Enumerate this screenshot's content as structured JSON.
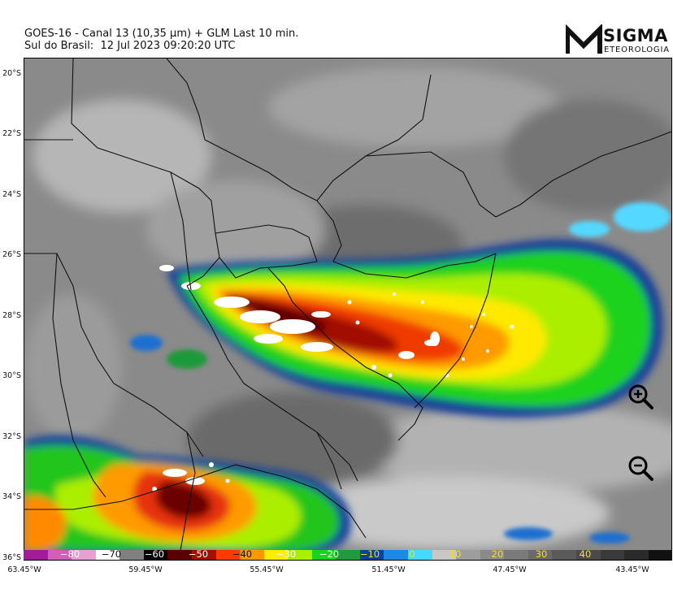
{
  "header": {
    "line1": "GOES-16 - Canal 13 (10,35 µm) + GLM Last 10 min.",
    "line2": "Sul do Brasil:  12 Jul 2023 09:20:20 UTC"
  },
  "logo": {
    "brand": "SIGMA",
    "sub": "ETEOROLOGIA"
  },
  "map": {
    "lat_labels": [
      "20°S",
      "22°S",
      "24°S",
      "26°S",
      "28°S",
      "30°S",
      "32°S",
      "34°S",
      "36°S"
    ],
    "lon_labels": [
      "63.45°W",
      "59.45°W",
      "55.45°W",
      "51.45°W",
      "47.45°W",
      "43.45°W"
    ]
  },
  "colorbar": {
    "labels": [
      "−80",
      "−70",
      "−60",
      "−50",
      "−40",
      "−30",
      "−20",
      "−10",
      "0",
      "10",
      "20",
      "30",
      "40"
    ],
    "label_colors": [
      "#ffffff",
      "#111111",
      "#ffffff",
      "#ffffff",
      "#111111",
      "#ffffff",
      "#ffffff",
      "#ffe000",
      "#ffe000",
      "#ffe000",
      "#ffe000",
      "#ffe000",
      "#ffe000"
    ],
    "colors": [
      "#a21c98",
      "#cf5fb8",
      "#e7a0d3",
      "#ffffff",
      "#808080",
      "#000000",
      "#5a0000",
      "#a50f00",
      "#ff3a00",
      "#ff9800",
      "#ffee00",
      "#aaf000",
      "#1ad41a",
      "#22993a",
      "#0a40a0",
      "#1e88e5",
      "#45d9ff",
      "#c8c8c8",
      "#9d9d9d",
      "#8a8a8a",
      "#7a7a7a",
      "#6a6a6a",
      "#5a5a5a",
      "#4a4a4a",
      "#3a3a3a",
      "#2a2a2a",
      "#111111"
    ]
  },
  "controls": {
    "zoom_in": "zoom-in",
    "zoom_out": "zoom-out"
  }
}
